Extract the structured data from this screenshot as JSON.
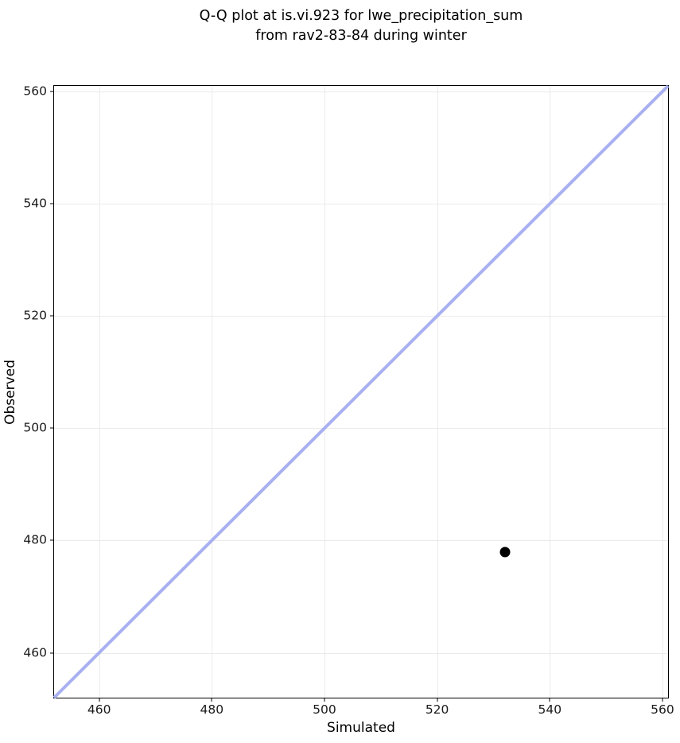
{
  "figure": {
    "title_line1": "Q-Q plot at is.vi.923 for lwe_precipitation_sum",
    "title_line2": "from rav2-83-84 during winter"
  },
  "chart_data": {
    "type": "scatter",
    "title": "Q-Q plot at is.vi.923 for lwe_precipitation_sum\nfrom rav2-83-84 during winter",
    "xlabel": "Simulated",
    "ylabel": "Observed",
    "xlim": [
      452,
      561
    ],
    "ylim": [
      452,
      561
    ],
    "xticks": [
      460,
      480,
      500,
      520,
      540,
      560
    ],
    "yticks": [
      460,
      480,
      500,
      520,
      540,
      560
    ],
    "grid": true,
    "legend_position": "none",
    "points": [
      {
        "x": 532,
        "y": 478
      }
    ],
    "identity_line": {
      "type": "y=x",
      "from": 452,
      "to": 561
    },
    "colors": {
      "point": "#000000",
      "identity_line": "#a9b0f1",
      "grid": "#ebebeb",
      "axis": "#000000",
      "tick_text": "#1a1a1a",
      "background": "#ffffff"
    }
  }
}
